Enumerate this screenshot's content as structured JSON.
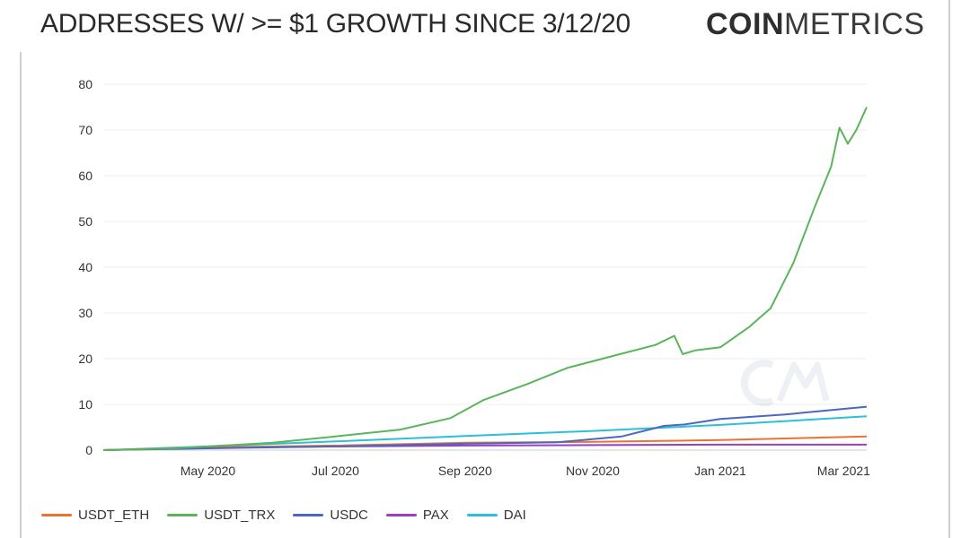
{
  "header": {
    "title": "ADDRESSES W/ >= $1 GROWTH SINCE 3/12/20",
    "logo_bold": "COIN",
    "logo_light": "METRICS"
  },
  "chart_data": {
    "type": "line",
    "title": "ADDRESSES W/ >= $1 GROWTH SINCE 3/12/20",
    "xlabel": "",
    "ylabel": "",
    "ylim": [
      0,
      80
    ],
    "y_ticks": [
      "0",
      "10",
      "20",
      "30",
      "40",
      "50",
      "60",
      "70",
      "80"
    ],
    "x_ticks": [
      "May 2020",
      "Jul 2020",
      "Sep 2020",
      "Nov 2020",
      "Jan 2021",
      "Mar 2021"
    ],
    "x_tick_dates": [
      "2020-05-01",
      "2020-07-01",
      "2020-09-01",
      "2020-11-01",
      "2021-01-01",
      "2021-03-01"
    ],
    "xlim": [
      "2020-03-12",
      "2021-03-12"
    ],
    "grid": true,
    "legend_position": "bottom-left",
    "series": [
      {
        "name": "USDT_ETH",
        "color": "#e8742e",
        "x": [
          "2020-03-12",
          "2020-05-01",
          "2020-07-01",
          "2020-09-01",
          "2020-11-01",
          "2021-01-01",
          "2021-03-12"
        ],
        "values": [
          0,
          0.6,
          1.0,
          1.6,
          1.8,
          2.2,
          3.0
        ]
      },
      {
        "name": "USDT_TRX",
        "color": "#5ab55a",
        "x": [
          "2020-03-12",
          "2020-04-15",
          "2020-05-01",
          "2020-06-01",
          "2020-07-01",
          "2020-08-01",
          "2020-08-25",
          "2020-09-10",
          "2020-10-01",
          "2020-10-20",
          "2020-11-10",
          "2020-12-01",
          "2020-12-10",
          "2020-12-14",
          "2020-12-20",
          "2021-01-01",
          "2021-01-15",
          "2021-01-25",
          "2021-02-05",
          "2021-02-15",
          "2021-02-23",
          "2021-02-27",
          "2021-03-03",
          "2021-03-07",
          "2021-03-12"
        ],
        "values": [
          0,
          0.4,
          0.8,
          1.6,
          3.0,
          4.5,
          7.0,
          11.0,
          14.5,
          18.0,
          20.5,
          23.0,
          25.0,
          21.0,
          21.8,
          22.5,
          27.0,
          31.0,
          41.0,
          53.0,
          62.0,
          70.5,
          67.0,
          70.0,
          75.0
        ]
      },
      {
        "name": "USDC",
        "color": "#4a67c3",
        "x": [
          "2020-03-12",
          "2020-05-01",
          "2020-07-01",
          "2020-09-01",
          "2020-10-15",
          "2020-11-15",
          "2020-12-05",
          "2020-12-15",
          "2021-01-01",
          "2021-02-01",
          "2021-03-12"
        ],
        "values": [
          0,
          0.4,
          0.8,
          1.4,
          1.7,
          3.0,
          5.3,
          5.6,
          6.8,
          7.8,
          9.5
        ]
      },
      {
        "name": "PAX",
        "color": "#9a3fc2",
        "x": [
          "2020-03-12",
          "2020-05-01",
          "2020-07-01",
          "2020-09-01",
          "2020-11-01",
          "2021-01-01",
          "2021-03-12"
        ],
        "values": [
          0,
          0.5,
          0.8,
          1.0,
          1.1,
          1.2,
          1.2
        ]
      },
      {
        "name": "DAI",
        "color": "#2bc0d8",
        "x": [
          "2020-03-12",
          "2020-05-01",
          "2020-07-01",
          "2020-09-01",
          "2020-11-01",
          "2021-01-01",
          "2021-03-12"
        ],
        "values": [
          0,
          0.8,
          1.9,
          3.1,
          4.2,
          5.5,
          7.4
        ]
      }
    ]
  }
}
